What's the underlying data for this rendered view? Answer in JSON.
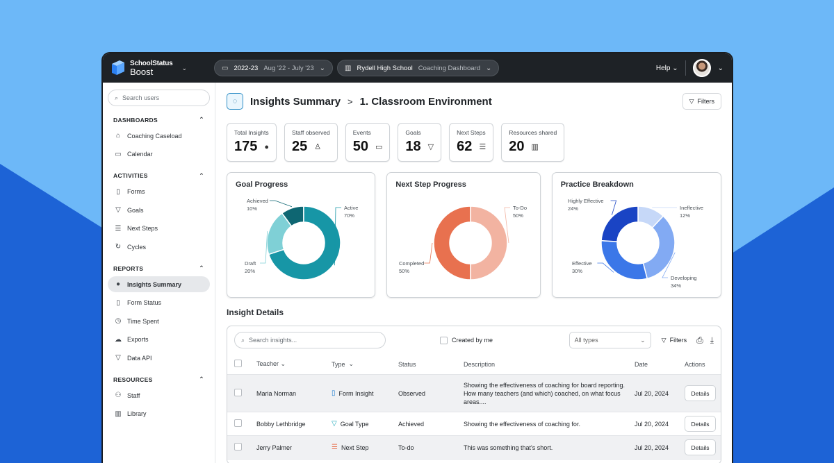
{
  "colors": {
    "bg_light": "#6db8f8",
    "bg_dark": "#1d63d6",
    "topbar": "#1e2226",
    "goal_active": "#1796a6",
    "goal_achieved": "#0e6672",
    "goal_draft": "#7fd0d6",
    "next_todo": "#f2b3a1",
    "next_completed": "#e8714f",
    "practice_highly": "#1a44c4",
    "practice_ineffective": "#c6d8f8",
    "practice_developing": "#82aaf3",
    "practice_effective": "#3b77e8"
  },
  "topbar": {
    "brand_top": "SchoolStatus",
    "brand_bottom": "Boost",
    "year": "2022-23",
    "year_range": "Aug '22 - July '23",
    "school": "Rydell High School",
    "dashboard": "Coaching Dashboard",
    "help": "Help"
  },
  "sidebar": {
    "search_placeholder": "Search users",
    "sections": [
      {
        "title": "DASHBOARDS",
        "items": [
          {
            "label": "Coaching Caseload",
            "icon": "home-icon"
          },
          {
            "label": "Calendar",
            "icon": "calendar-icon"
          }
        ]
      },
      {
        "title": "ACTIVITIES",
        "items": [
          {
            "label": "Forms",
            "icon": "clipboard-icon"
          },
          {
            "label": "Goals",
            "icon": "trophy-icon"
          },
          {
            "label": "Next Steps",
            "icon": "list-icon"
          },
          {
            "label": "Cycles",
            "icon": "cycle-icon"
          }
        ]
      },
      {
        "title": "REPORTS",
        "items": [
          {
            "label": "Insights Summary",
            "icon": "bulb-icon"
          },
          {
            "label": "Form Status",
            "icon": "clipboard-check-icon"
          },
          {
            "label": "Time Spent",
            "icon": "clock-icon"
          },
          {
            "label": "Exports",
            "icon": "cloud-icon"
          },
          {
            "label": "Data API",
            "icon": "funnel-icon"
          }
        ]
      },
      {
        "title": "RESOURCES",
        "items": [
          {
            "label": "Staff",
            "icon": "people-icon"
          },
          {
            "label": "Library",
            "icon": "book-icon"
          }
        ]
      }
    ]
  },
  "header": {
    "title": "Insights Summary",
    "separator": ">",
    "subtitle": "1. Classroom Environment",
    "filters": "Filters"
  },
  "stats": [
    {
      "label": "Total Insights",
      "value": "175",
      "icon": "bulb-icon"
    },
    {
      "label": "Staff observed",
      "value": "25",
      "icon": "person-icon"
    },
    {
      "label": "Events",
      "value": "50",
      "icon": "calendar-icon"
    },
    {
      "label": "Goals",
      "value": "18",
      "icon": "trophy-icon"
    },
    {
      "label": "Next Steps",
      "value": "62",
      "icon": "list-icon"
    },
    {
      "label": "Resources shared",
      "value": "20",
      "icon": "book-icon"
    }
  ],
  "chart_data": [
    {
      "type": "pie",
      "title": "Goal Progress",
      "donut": true,
      "slices": [
        {
          "label": "Achieved",
          "pct_label": "10%",
          "value": 10
        },
        {
          "label": "Active",
          "pct_label": "70%",
          "value": 70
        },
        {
          "label": "Draft",
          "pct_label": "20%",
          "value": 20
        }
      ]
    },
    {
      "type": "pie",
      "title": "Next Step Progress",
      "donut": true,
      "slices": [
        {
          "label": "To-Do",
          "pct_label": "50%",
          "value": 50
        },
        {
          "label": "Completed",
          "pct_label": "50%",
          "value": 50
        }
      ]
    },
    {
      "type": "pie",
      "title": "Practice Breakdown",
      "donut": true,
      "slices": [
        {
          "label": "Ineffective",
          "pct_label": "12%",
          "value": 12
        },
        {
          "label": "Developing",
          "pct_label": "34%",
          "value": 34
        },
        {
          "label": "Effective",
          "pct_label": "30%",
          "value": 30
        },
        {
          "label": "Highly Effective",
          "pct_label": "24%",
          "value": 24
        }
      ]
    }
  ],
  "details": {
    "title": "Insight Details",
    "search_placeholder": "Search insights...",
    "created_by_me": "Created by me",
    "type_select": "All types",
    "filters": "Filters",
    "columns": [
      "Teacher",
      "Type",
      "Status",
      "Description",
      "Date",
      "Actions"
    ],
    "rows": [
      {
        "teacher": "Maria Norman",
        "type": "Form Insight",
        "type_icon": "clipboard-icon",
        "status": "Observed",
        "description": "Showing the effectiveness of coaching for board reporting. How many teachers (and which) coached, on what focus areas....",
        "date": "Jul 20, 2024",
        "action": "Details"
      },
      {
        "teacher": "Bobby Lethbridge",
        "type": "Goal Type",
        "type_icon": "trophy-icon",
        "status": "Achieved",
        "description": "Showing the effectiveness of coaching for.",
        "date": "Jul 20, 2024",
        "action": "Details"
      },
      {
        "teacher": "Jerry Palmer",
        "type": "Next Step",
        "type_icon": "list-icon",
        "status": "To-do",
        "description": "This was something that's short.",
        "date": "Jul 20, 2024",
        "action": "Details"
      }
    ]
  }
}
